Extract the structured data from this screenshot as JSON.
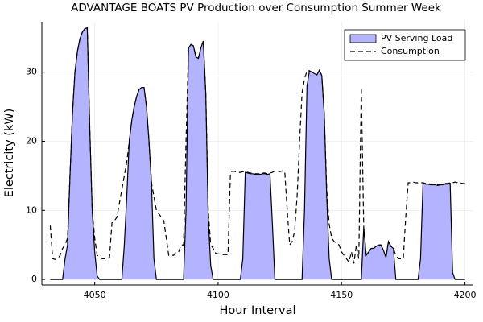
{
  "chart_data": {
    "type": "area_line",
    "title": "ADVANTAGE BOATS PV Production over Consumption Summer Week",
    "x_label": "Hour Interval",
    "y_label": "Electricity (kW)",
    "x": [
      4032,
      4033,
      4034,
      4035,
      4036,
      4037,
      4038,
      4039,
      4040,
      4041,
      4042,
      4043,
      4044,
      4045,
      4046,
      4047,
      4048,
      4049,
      4050,
      4051,
      4052,
      4053,
      4054,
      4055,
      4056,
      4057,
      4058,
      4059,
      4060,
      4061,
      4062,
      4063,
      4064,
      4065,
      4066,
      4067,
      4068,
      4069,
      4070,
      4071,
      4072,
      4073,
      4074,
      4075,
      4076,
      4077,
      4078,
      4079,
      4080,
      4081,
      4082,
      4083,
      4084,
      4085,
      4086,
      4087,
      4088,
      4089,
      4090,
      4091,
      4092,
      4093,
      4094,
      4095,
      4096,
      4097,
      4098,
      4099,
      4100,
      4101,
      4102,
      4103,
      4104,
      4105,
      4106,
      4107,
      4108,
      4109,
      4110,
      4111,
      4112,
      4113,
      4114,
      4115,
      4116,
      4117,
      4118,
      4119,
      4120,
      4121,
      4122,
      4123,
      4124,
      4125,
      4126,
      4127,
      4128,
      4129,
      4130,
      4131,
      4132,
      4133,
      4134,
      4135,
      4136,
      4137,
      4138,
      4139,
      4140,
      4141,
      4142,
      4143,
      4144,
      4145,
      4146,
      4147,
      4148,
      4149,
      4150,
      4151,
      4152,
      4153,
      4154,
      4155,
      4156,
      4157,
      4158,
      4159,
      4160,
      4161,
      4162,
      4163,
      4164,
      4165,
      4166,
      4167,
      4168,
      4169,
      4170,
      4171,
      4172,
      4173,
      4174,
      4175,
      4176,
      4177,
      4178,
      4179,
      4180,
      4181,
      4182,
      4183,
      4184,
      4185,
      4186,
      4187,
      4188,
      4189,
      4190,
      4191,
      4192,
      4193,
      4194,
      4195,
      4196,
      4197,
      4198,
      4199,
      4200
    ],
    "series": [
      {
        "name": "PV Serving Load",
        "color": "#b3b3ff",
        "style": "area",
        "values": [
          0,
          0,
          0,
          0,
          0,
          0,
          3,
          5,
          15,
          24,
          30,
          33,
          34.8,
          35.8,
          36.3,
          36.4,
          22,
          10,
          4,
          0.5,
          0,
          0,
          0,
          0,
          0,
          0,
          0,
          0,
          0,
          0,
          5,
          12,
          20,
          23,
          25,
          26.5,
          27.5,
          27.8,
          27.8,
          25,
          20,
          14,
          3,
          0,
          0,
          0,
          0,
          0,
          0,
          0,
          0,
          0,
          0,
          0,
          0,
          10,
          33.5,
          34,
          33.8,
          32.2,
          32,
          33.5,
          34.5,
          27,
          9,
          2,
          0,
          0,
          0,
          0,
          0,
          0,
          0,
          0,
          0,
          0,
          0,
          0,
          3,
          15.5,
          15.4,
          15.3,
          15.3,
          15.2,
          15.2,
          15.2,
          15.3,
          15.3,
          15.2,
          15.3,
          8,
          0,
          0,
          0,
          0,
          0,
          0,
          0,
          0,
          0,
          0,
          0,
          0,
          10,
          28,
          30.2,
          30,
          29.8,
          29.6,
          30.3,
          29.5,
          24,
          12,
          3,
          0,
          0,
          0,
          0,
          0,
          0,
          0,
          0,
          0,
          0,
          0,
          0,
          0,
          7.5,
          3.5,
          4,
          4.5,
          4.5,
          4.8,
          5,
          5,
          4.2,
          3.2,
          5.5,
          4.8,
          4.5,
          0,
          0,
          0,
          0,
          0,
          0,
          0,
          0,
          0,
          0,
          3,
          13.9,
          13.8,
          13.8,
          13.7,
          13.7,
          13.7,
          13.6,
          13.7,
          13.7,
          13.8,
          13.8,
          13.9,
          1,
          0,
          0,
          0,
          0,
          0
        ]
      },
      {
        "name": "Consumption",
        "color": "#000000",
        "style": "dashed",
        "values": [
          7.8,
          3,
          2.9,
          3,
          3.5,
          4.5,
          5,
          6,
          15,
          24,
          30,
          33,
          34.8,
          35.8,
          36.3,
          36.4,
          22,
          10,
          6,
          3.5,
          3.2,
          3,
          3,
          3,
          3.2,
          8.2,
          8.5,
          9,
          11,
          13,
          15,
          17,
          20,
          23,
          25,
          26.5,
          27.5,
          27.8,
          27.8,
          25,
          20,
          14,
          12,
          10,
          9.5,
          9,
          8.5,
          6,
          3.5,
          3.5,
          3.5,
          4,
          4,
          5,
          5,
          20,
          33.5,
          34,
          33.8,
          32.2,
          32,
          33.5,
          34.5,
          27,
          10,
          5,
          4.5,
          3.8,
          3.7,
          3.7,
          3.6,
          3.6,
          3.6,
          15.5,
          15.7,
          15.6,
          15.5,
          15.5,
          15.6,
          15.6,
          15.5,
          15.4,
          15.4,
          15.3,
          15.3,
          15.3,
          15.4,
          15.4,
          15.3,
          15.4,
          15.5,
          15.7,
          15.7,
          15.6,
          15.7,
          15.6,
          10,
          5,
          5.5,
          7,
          12,
          20,
          27,
          29,
          30.2,
          30.2,
          30,
          29.8,
          29.6,
          30.3,
          29.5,
          24,
          13,
          8,
          6,
          5.5,
          5.2,
          5,
          4,
          3.5,
          3,
          2.5,
          4,
          2.3,
          5,
          3,
          27.8,
          7.5,
          3.5,
          4,
          4.5,
          4.5,
          4.8,
          5,
          5,
          4.2,
          3.2,
          5.5,
          4.8,
          4.5,
          3.5,
          3,
          3,
          3,
          9,
          14,
          14,
          14.1,
          14,
          14,
          14,
          14,
          13.9,
          13.9,
          13.8,
          13.8,
          13.8,
          13.7,
          13.8,
          13.8,
          13.9,
          13.9,
          14,
          14,
          14.1,
          14,
          14,
          13.9,
          13.9
        ]
      }
    ],
    "xlim": [
      4028.6,
      4203.4
    ],
    "ylim": [
      -0.8,
      37.3
    ],
    "xticks": [
      4050,
      4100,
      4150,
      4200
    ],
    "yticks": [
      0,
      10,
      20,
      30
    ],
    "grid": true,
    "legend_position": "top-right"
  }
}
